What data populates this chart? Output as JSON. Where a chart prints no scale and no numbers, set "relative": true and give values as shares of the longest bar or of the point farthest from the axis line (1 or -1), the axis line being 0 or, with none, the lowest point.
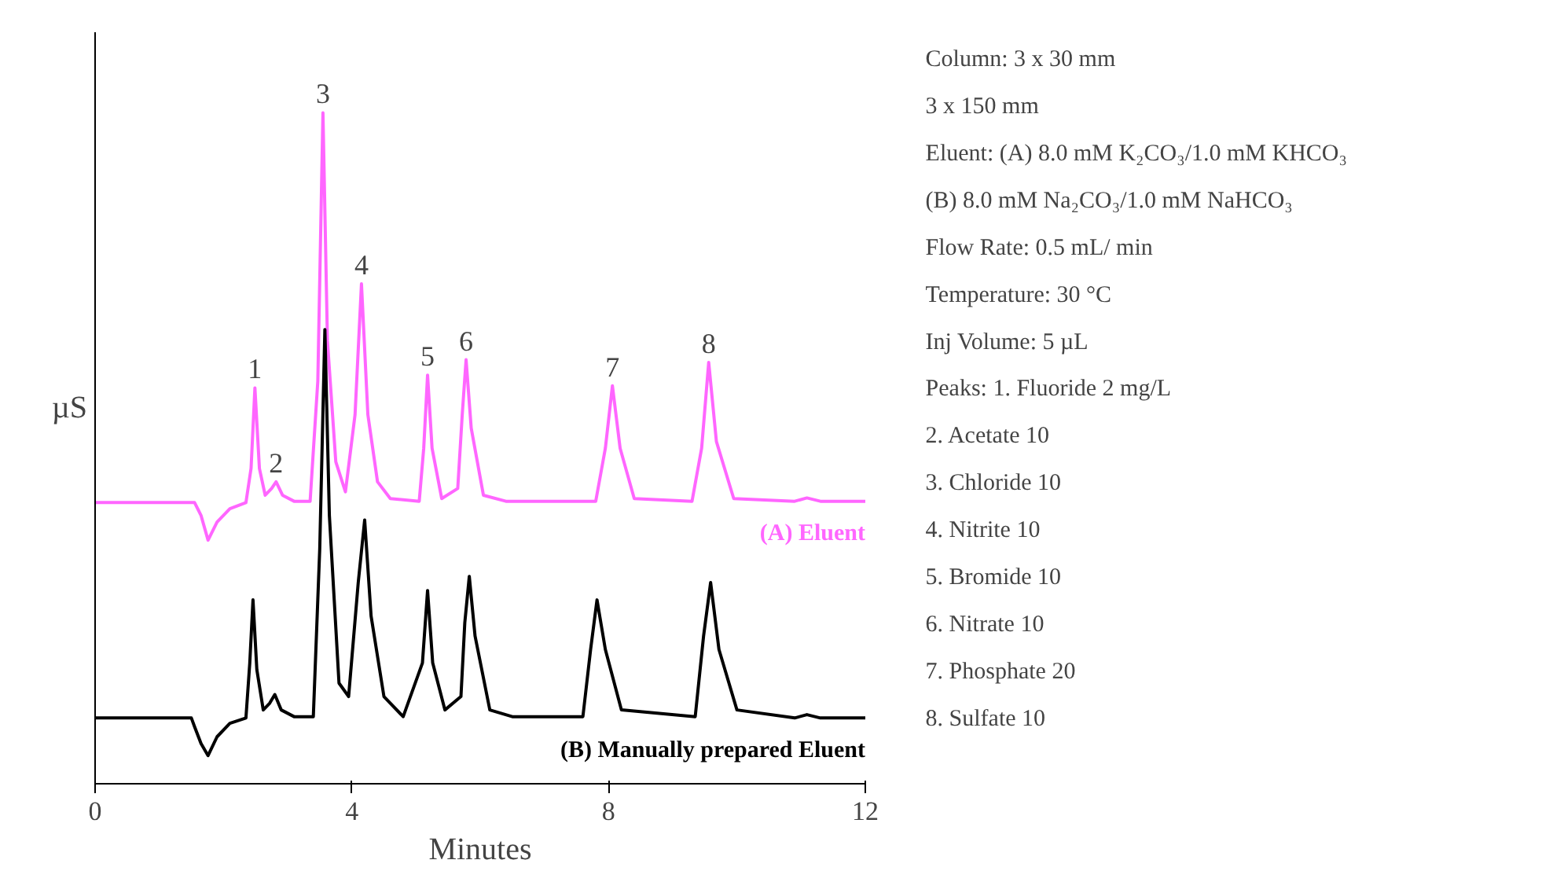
{
  "chart_data": {
    "type": "line",
    "relative": true,
    "xlabel": "Minutes",
    "ylabel": "µS",
    "xlim": [
      0,
      12
    ],
    "xticks": [
      0,
      4,
      8,
      12
    ],
    "grid": false,
    "legend": false,
    "marker": "none",
    "line_style": "solid",
    "series": [
      {
        "name": "(A) Eluent",
        "color": "#ff66ff",
        "x": [
          0,
          1.55,
          1.65,
          1.76,
          1.9,
          2.1,
          2.35,
          2.43,
          2.49,
          2.56,
          2.65,
          2.75,
          2.82,
          2.92,
          3.1,
          3.35,
          3.47,
          3.55,
          3.62,
          3.75,
          3.9,
          4.05,
          4.15,
          4.25,
          4.4,
          4.6,
          5.05,
          5.12,
          5.18,
          5.25,
          5.4,
          5.65,
          5.72,
          5.78,
          5.86,
          6.05,
          6.4,
          7.8,
          7.95,
          8.06,
          8.18,
          8.4,
          9.3,
          9.45,
          9.56,
          9.68,
          9.95,
          10.9,
          11.09,
          11.3,
          12
        ],
        "values": [
          0.419,
          0.419,
          0.4,
          0.363,
          0.39,
          0.41,
          0.419,
          0.47,
          0.59,
          0.47,
          0.43,
          0.44,
          0.45,
          0.43,
          0.421,
          0.421,
          0.6,
          1.0,
          0.66,
          0.48,
          0.435,
          0.55,
          0.745,
          0.55,
          0.45,
          0.425,
          0.421,
          0.5,
          0.609,
          0.5,
          0.425,
          0.44,
          0.55,
          0.632,
          0.53,
          0.43,
          0.421,
          0.421,
          0.5,
          0.593,
          0.5,
          0.425,
          0.421,
          0.5,
          0.628,
          0.51,
          0.425,
          0.421,
          0.426,
          0.421,
          0.421
        ]
      },
      {
        "name": "(B) Manually prepared Eluent",
        "color": "#000000",
        "x": [
          0,
          1.5,
          1.55,
          1.65,
          1.76,
          1.9,
          2.1,
          2.35,
          2.41,
          2.46,
          2.52,
          2.62,
          2.72,
          2.8,
          2.9,
          3.1,
          3.4,
          3.5,
          3.58,
          3.65,
          3.8,
          3.95,
          4.1,
          4.2,
          4.3,
          4.5,
          4.8,
          5.1,
          5.18,
          5.26,
          5.45,
          5.7,
          5.76,
          5.83,
          5.92,
          6.15,
          6.5,
          7.6,
          7.72,
          7.82,
          7.95,
          8.2,
          9.35,
          9.48,
          9.59,
          9.72,
          10.0,
          10.9,
          11.09,
          11.3,
          12
        ],
        "values": [
          0.098,
          0.098,
          0.085,
          0.06,
          0.042,
          0.07,
          0.09,
          0.098,
          0.18,
          0.274,
          0.17,
          0.11,
          0.12,
          0.133,
          0.11,
          0.1,
          0.1,
          0.35,
          0.677,
          0.4,
          0.15,
          0.13,
          0.3,
          0.393,
          0.25,
          0.13,
          0.1,
          0.18,
          0.288,
          0.18,
          0.11,
          0.13,
          0.24,
          0.309,
          0.22,
          0.11,
          0.1,
          0.1,
          0.2,
          0.274,
          0.2,
          0.11,
          0.1,
          0.22,
          0.3,
          0.2,
          0.11,
          0.098,
          0.103,
          0.098,
          0.098
        ]
      }
    ],
    "annotations": [
      {
        "text": "1",
        "x": 2.49,
        "y": 0.59
      },
      {
        "text": "2",
        "x": 2.82,
        "y": 0.45
      },
      {
        "text": "3",
        "x": 3.55,
        "y": 1.0
      },
      {
        "text": "4",
        "x": 4.15,
        "y": 0.745
      },
      {
        "text": "5",
        "x": 5.18,
        "y": 0.609
      },
      {
        "text": "6",
        "x": 5.78,
        "y": 0.632
      },
      {
        "text": "7",
        "x": 8.06,
        "y": 0.593
      },
      {
        "text": "8",
        "x": 9.56,
        "y": 0.628
      },
      "Column: 3 x 30 mm",
      "3 x 150 mm",
      "Eluent: (A) 8.0 mM K₂CO₃/1.0 mM KHCO₃",
      "(B) 8.0 mM Na₂CO₃/1.0 mM NaHCO₃",
      "Flow Rate: 0.5 mL/ min",
      "Temperature: 30 °C",
      "Inj Volume: 5 µL",
      "Peaks: 1. Fluoride 2 mg/L",
      "2. Acetate 10",
      "3. Chloride 10",
      "4. Nitrite 10",
      "5. Bromide 10",
      "6. Nitrate 10",
      "7. Phosphate 20",
      "8. Sulfate 10"
    ]
  }
}
